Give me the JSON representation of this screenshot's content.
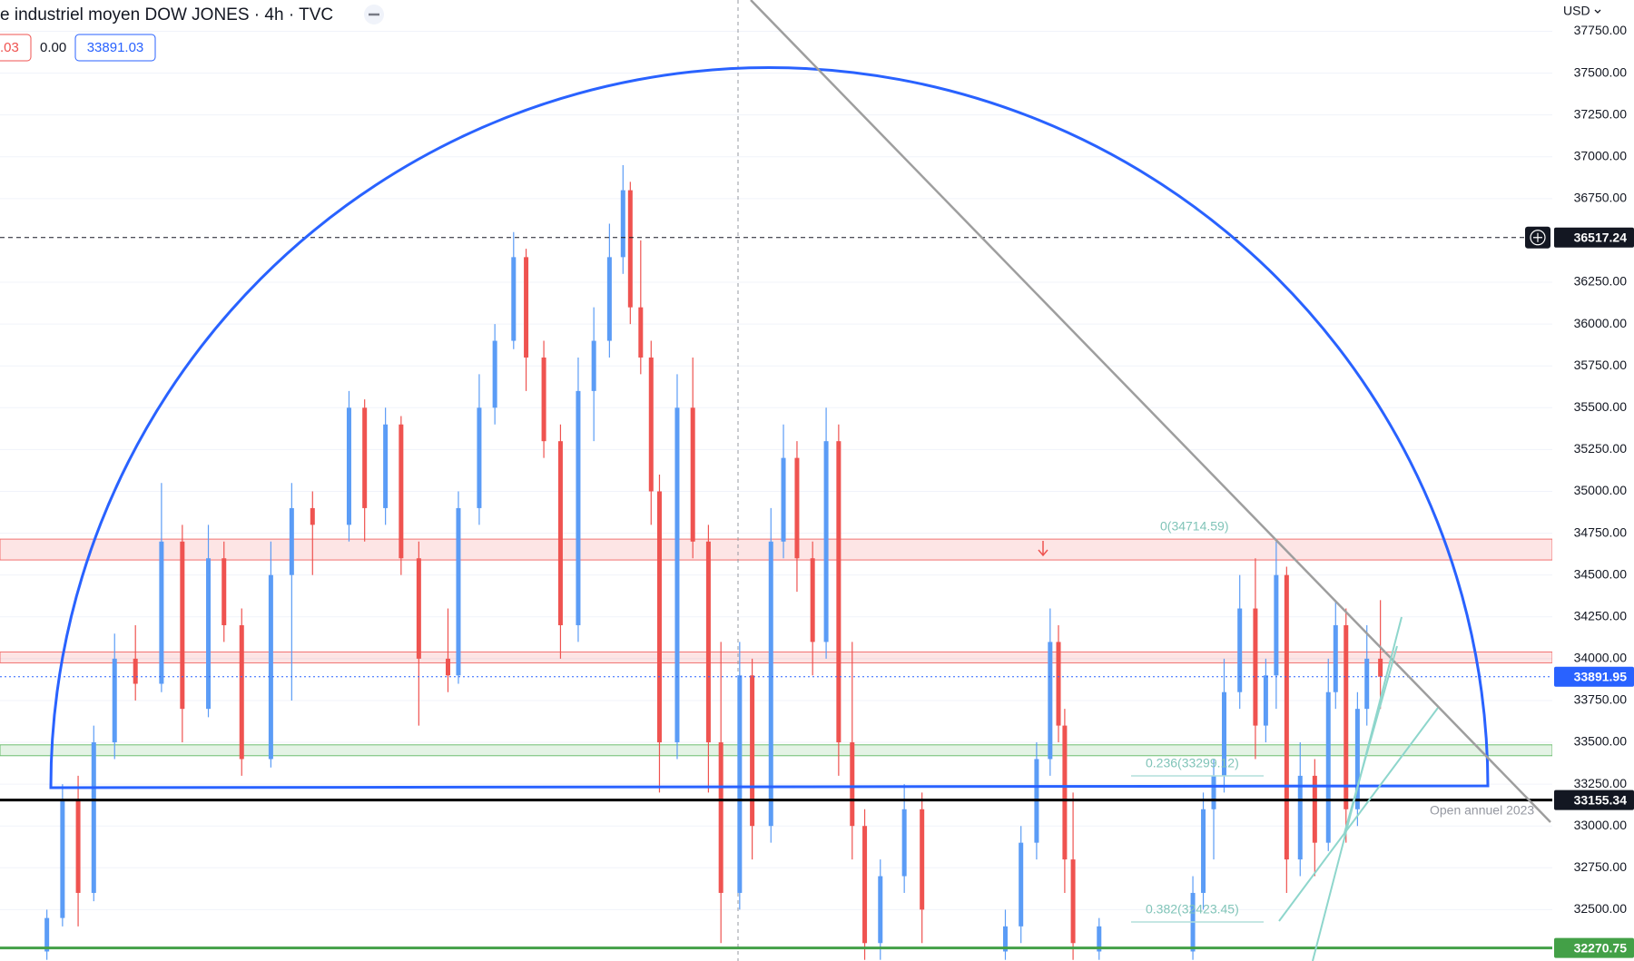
{
  "chart_data": {
    "type": "candlestick",
    "header": {
      "title": "e industriel moyen DOW JONES · 4h · TVC",
      "change": ".03",
      "change_pct": "0.00",
      "last": "33891.03"
    },
    "currency": "USD",
    "up_color": "#5b9cf6",
    "down_color": "#ef5350",
    "xlim": [
      0,
      1490
    ],
    "ylim": [
      32193,
      37937
    ],
    "grid": true,
    "yticks": [
      {
        "value": 32500,
        "label": "32500.00"
      },
      {
        "value": 32750,
        "label": "32750.00"
      },
      {
        "value": 33000,
        "label": "33000.00"
      },
      {
        "value": 33250,
        "label": "33250.00"
      },
      {
        "value": 33500,
        "label": "33500.00"
      },
      {
        "value": 33750,
        "label": "33750.00"
      },
      {
        "value": 34000,
        "label": "34000.00"
      },
      {
        "value": 34250,
        "label": "34250.00"
      },
      {
        "value": 34500,
        "label": "34500.00"
      },
      {
        "value": 34750,
        "label": "34750.00"
      },
      {
        "value": 35000,
        "label": "35000.00"
      },
      {
        "value": 35250,
        "label": "35250.00"
      },
      {
        "value": 35500,
        "label": "35500.00"
      },
      {
        "value": 35750,
        "label": "35750.00"
      },
      {
        "value": 36000,
        "label": "36000.00"
      },
      {
        "value": 36250,
        "label": "36250.00"
      },
      {
        "value": 36750,
        "label": "36750.00"
      },
      {
        "value": 37000,
        "label": "37000.00"
      },
      {
        "value": 37250,
        "label": "37250.00"
      },
      {
        "value": 37500,
        "label": "37500.00"
      },
      {
        "value": 37750,
        "label": "37750.00"
      }
    ],
    "x": [
      45,
      60,
      75,
      90,
      110,
      130,
      155,
      175,
      200,
      215,
      232,
      260,
      280,
      300,
      335,
      350,
      370,
      385,
      402,
      430,
      440,
      460,
      475,
      493,
      505,
      522,
      538,
      555,
      570,
      585,
      598,
      605,
      615,
      625,
      633,
      650,
      665,
      680,
      692,
      710,
      722,
      740,
      752,
      765,
      780,
      793,
      805,
      818,
      830,
      845,
      868,
      885,
      965,
      980,
      995,
      1008,
      1016,
      1022,
      1030,
      1055,
      1145,
      1155,
      1165,
      1175,
      1190,
      1205,
      1215,
      1225,
      1235,
      1248,
      1262,
      1275,
      1282,
      1292,
      1303,
      1312,
      1325
    ],
    "open": [
      32250,
      32450,
      33150,
      32600,
      33500,
      34000,
      33850,
      34700,
      33700,
      34600,
      34200,
      33400,
      34500,
      34900,
      34800,
      35500,
      34900,
      35400,
      34600,
      34000,
      33900,
      34900,
      35500,
      35900,
      36400,
      35800,
      35300,
      34200,
      35600,
      35900,
      36400,
      36800,
      36100,
      35800,
      35000,
      33500,
      35500,
      34700,
      33500,
      32600,
      33900,
      33000,
      34700,
      35200,
      34600,
      34100,
      35300,
      33500,
      33000,
      32300,
      32700,
      33100,
      32250,
      32400,
      32900,
      33400,
      34100,
      33600,
      32800,
      32250,
      32250,
      32600,
      33100,
      33300,
      33800,
      34300,
      33600,
      33900,
      34500,
      32800,
      33300,
      32900,
      33800,
      34200,
      33100,
      33700,
      34000
    ],
    "high": [
      32500,
      33250,
      33300,
      33600,
      34150,
      34200,
      35050,
      34800,
      34800,
      34700,
      34300,
      34700,
      35050,
      35000,
      35600,
      35550,
      35500,
      35450,
      34700,
      34300,
      35000,
      35700,
      36000,
      36550,
      36450,
      35900,
      35400,
      35800,
      36100,
      36600,
      36950,
      36850,
      36500,
      35900,
      35100,
      35700,
      35800,
      34800,
      34100,
      34100,
      34000,
      34900,
      35400,
      35300,
      34700,
      35500,
      35400,
      34100,
      33100,
      32800,
      33250,
      33200,
      32500,
      33000,
      33500,
      34300,
      34200,
      33700,
      33200,
      32450,
      32700,
      33200,
      33400,
      34000,
      34500,
      34600,
      34000,
      34700,
      34550,
      33500,
      33400,
      34000,
      34350,
      34300,
      33800,
      34200,
      34350
    ],
    "low": [
      32200,
      32400,
      32400,
      32550,
      33400,
      33750,
      33800,
      33500,
      33650,
      34100,
      33300,
      33350,
      33750,
      34500,
      34700,
      34700,
      34800,
      34500,
      33600,
      33800,
      33850,
      34800,
      35400,
      35850,
      35600,
      35200,
      34000,
      34100,
      35300,
      35800,
      36300,
      36000,
      35700,
      34800,
      33200,
      33400,
      34600,
      33200,
      32300,
      32500,
      32800,
      32900,
      34600,
      34400,
      33900,
      34000,
      33300,
      32800,
      32200,
      32200,
      32600,
      32300,
      32200,
      32300,
      32800,
      33300,
      33500,
      32600,
      32200,
      32200,
      32200,
      32500,
      32800,
      33200,
      33700,
      33400,
      33500,
      33700,
      32600,
      32700,
      32700,
      32850,
      33700,
      32900,
      33000,
      33600,
      33700
    ],
    "close": [
      32450,
      33150,
      32600,
      33500,
      34000,
      33850,
      34700,
      33700,
      34600,
      34200,
      33400,
      34500,
      34900,
      34800,
      35500,
      34900,
      35400,
      34600,
      34000,
      33900,
      34900,
      35500,
      35900,
      36400,
      35800,
      35300,
      34200,
      35600,
      35900,
      36400,
      36800,
      36100,
      35800,
      35000,
      33500,
      35500,
      34700,
      33500,
      32600,
      33900,
      33000,
      34700,
      35200,
      34600,
      34100,
      35300,
      33500,
      33000,
      32300,
      32700,
      33100,
      32500,
      32400,
      32900,
      33400,
      34100,
      33600,
      32800,
      32300,
      32400,
      32600,
      33100,
      33300,
      33800,
      34300,
      33600,
      33900,
      34500,
      32800,
      33300,
      32900,
      33800,
      34200,
      33100,
      33700,
      34000,
      33892
    ],
    "zones": [
      {
        "from": 34590,
        "to": 34714.59,
        "color": "#ef5350"
      },
      {
        "from": 33975,
        "to": 34040,
        "color": "#ef5350"
      },
      {
        "from": 33420,
        "to": 33485,
        "color": "#4caf50"
      }
    ],
    "levels": [
      {
        "value": 36517.24,
        "color": "#131722",
        "style": "dashed",
        "tag": "#131722"
      },
      {
        "value": 33891.95,
        "color": "#2962ff",
        "style": "dotted",
        "tag": "#2962ff"
      },
      {
        "value": 33155.34,
        "color": "#000000",
        "style": "solid",
        "tag": "#131722"
      },
      {
        "value": 32270.75,
        "color": "#43a047",
        "style": "solid",
        "tag": "#43a047"
      }
    ],
    "fib_labels": [
      "0(34714.59)",
      "0.236(33299.12)",
      "0.382(32423.45)"
    ],
    "annotation": "Open annuel 2023"
  }
}
